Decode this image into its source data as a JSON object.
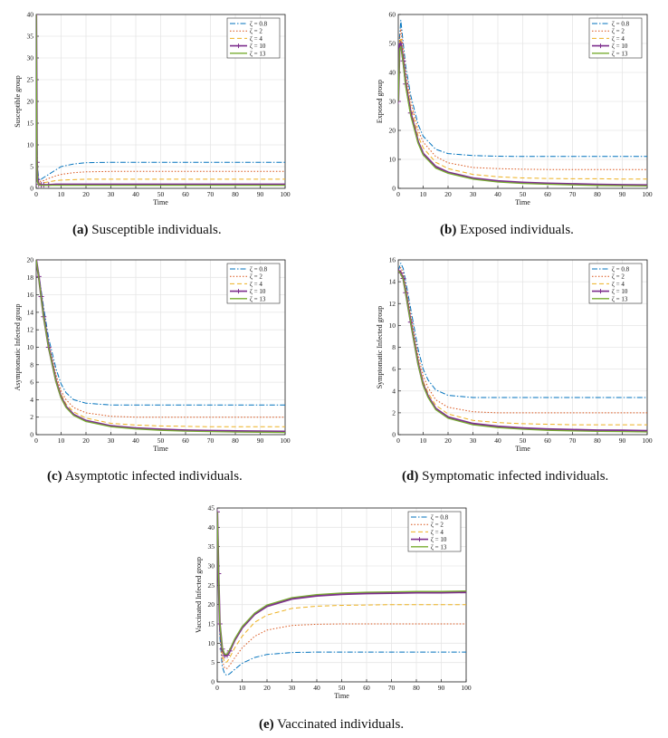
{
  "legend_labels": [
    "ζ = 0.8",
    "ζ = 2",
    "ζ = 4",
    "ζ = 10",
    "ζ = 13"
  ],
  "series_colors": [
    "#0072bd",
    "#d95319",
    "#edb120",
    "#7e2f8e",
    "#77ac30"
  ],
  "captions": [
    {
      "letter": "(a)",
      "text": "Susceptible individuals."
    },
    {
      "letter": "(b)",
      "text": "Exposed individuals."
    },
    {
      "letter": "(c)",
      "text": "Asymptotic infected individuals."
    },
    {
      "letter": "(d)",
      "text": "Symptomatic infected individuals."
    },
    {
      "letter": "(e)",
      "text": "Vaccinated individuals."
    }
  ],
  "chart_data": [
    {
      "type": "line",
      "title": "",
      "xlabel": "Time",
      "ylabel": "Susceptible group",
      "xlim": [
        0,
        100
      ],
      "ylim": [
        0,
        40
      ],
      "xticks": [
        0,
        10,
        20,
        30,
        40,
        50,
        60,
        70,
        80,
        90,
        100
      ],
      "yticks": [
        0,
        5,
        10,
        15,
        20,
        25,
        30,
        35,
        40
      ],
      "x": [
        0,
        0.3,
        0.5,
        1,
        2,
        3,
        5,
        8,
        10,
        15,
        20,
        30,
        40,
        50,
        60,
        70,
        80,
        90,
        100
      ],
      "series": [
        {
          "name": "ζ = 0.8",
          "values": [
            40,
            12,
            5,
            2.2,
            2.1,
            2.5,
            3.2,
            4.3,
            5,
            5.6,
            5.9,
            6.0,
            6.0,
            6.0,
            6.0,
            6.0,
            6.0,
            6.0,
            6.0
          ]
        },
        {
          "name": "ζ = 2",
          "values": [
            40,
            10,
            4,
            1.6,
            1.6,
            1.8,
            2.3,
            2.9,
            3.2,
            3.6,
            3.8,
            3.9,
            3.9,
            3.9,
            3.9,
            3.9,
            3.9,
            3.9,
            3.9
          ]
        },
        {
          "name": "ζ = 4",
          "values": [
            40,
            8,
            3,
            1.2,
            1.2,
            1.3,
            1.5,
            1.8,
            1.9,
            2.0,
            2.1,
            2.1,
            2.1,
            2.1,
            2.1,
            2.1,
            2.1,
            2.1,
            2.1
          ]
        },
        {
          "name": "ζ = 10",
          "values": [
            40,
            6,
            2,
            0.9,
            0.8,
            0.8,
            0.8,
            0.9,
            0.9,
            0.9,
            0.9,
            0.9,
            0.9,
            0.9,
            0.9,
            0.9,
            0.9,
            0.9,
            0.9
          ]
        },
        {
          "name": "ζ = 13",
          "values": [
            40,
            5,
            1.5,
            0.8,
            0.7,
            0.7,
            0.7,
            0.7,
            0.7,
            0.7,
            0.7,
            0.7,
            0.7,
            0.7,
            0.7,
            0.7,
            0.7,
            0.7,
            0.7
          ]
        }
      ]
    },
    {
      "type": "line",
      "title": "",
      "xlabel": "Time",
      "ylabel": "Exposed group",
      "xlim": [
        0,
        100
      ],
      "ylim": [
        0,
        60
      ],
      "xticks": [
        0,
        10,
        20,
        30,
        40,
        50,
        60,
        70,
        80,
        90,
        100
      ],
      "yticks": [
        0,
        10,
        20,
        30,
        40,
        50,
        60
      ],
      "x": [
        0,
        0.5,
        1,
        2,
        3,
        5,
        8,
        10,
        15,
        20,
        30,
        40,
        50,
        60,
        70,
        80,
        90,
        100
      ],
      "series": [
        {
          "name": "ζ = 0.8",
          "values": [
            30,
            52,
            58,
            50,
            42,
            32,
            22,
            18,
            13.5,
            12,
            11.3,
            11.1,
            11,
            11,
            11,
            11,
            11,
            11
          ]
        },
        {
          "name": "ζ = 2",
          "values": [
            30,
            51,
            55,
            48,
            40,
            30,
            20,
            16,
            11,
            8.8,
            7.2,
            6.8,
            6.6,
            6.5,
            6.5,
            6.5,
            6.5,
            6.5
          ]
        },
        {
          "name": "ζ = 4",
          "values": [
            30,
            50,
            52,
            46,
            38,
            28,
            18,
            14,
            9,
            6.8,
            4.8,
            4,
            3.6,
            3.4,
            3.3,
            3.3,
            3.2,
            3.2
          ]
        },
        {
          "name": "ζ = 10",
          "values": [
            30,
            49,
            50,
            44,
            36,
            26,
            16,
            12,
            7.5,
            5.5,
            3.5,
            2.5,
            2,
            1.7,
            1.5,
            1.3,
            1.2,
            1.1
          ]
        },
        {
          "name": "ζ = 13",
          "values": [
            30,
            48,
            49,
            43,
            35,
            25,
            15.5,
            11.5,
            7,
            5.2,
            3.2,
            2.2,
            1.7,
            1.4,
            1.2,
            1,
            0.9,
            0.8
          ]
        }
      ]
    },
    {
      "type": "line",
      "title": "",
      "xlabel": "Time",
      "ylabel": "Asymptomatic Infected group",
      "xlim": [
        0,
        100
      ],
      "ylim": [
        0,
        20
      ],
      "xticks": [
        0,
        10,
        20,
        30,
        40,
        50,
        60,
        70,
        80,
        90,
        100
      ],
      "yticks": [
        0,
        2,
        4,
        6,
        8,
        10,
        12,
        14,
        16,
        18,
        20
      ],
      "x": [
        0,
        1,
        2,
        3,
        5,
        8,
        10,
        12,
        15,
        20,
        30,
        40,
        50,
        60,
        70,
        80,
        90,
        100
      ],
      "series": [
        {
          "name": "ζ = 0.8",
          "values": [
            20,
            18.5,
            16.5,
            14.5,
            11,
            7.5,
            5.8,
            4.8,
            4,
            3.6,
            3.4,
            3.4,
            3.4,
            3.4,
            3.4,
            3.4,
            3.4,
            3.4
          ]
        },
        {
          "name": "ζ = 2",
          "values": [
            20,
            18.3,
            16.2,
            14,
            10.5,
            6.8,
            5,
            4,
            3.1,
            2.5,
            2.1,
            2,
            2,
            2,
            2,
            2,
            2,
            2
          ]
        },
        {
          "name": "ζ = 4",
          "values": [
            20,
            18.2,
            16,
            13.8,
            10.2,
            6.4,
            4.6,
            3.5,
            2.6,
            1.9,
            1.3,
            1.1,
            1,
            0.95,
            0.9,
            0.9,
            0.9,
            0.9
          ]
        },
        {
          "name": "ζ = 10",
          "values": [
            20,
            18.1,
            15.8,
            13.5,
            10,
            6.1,
            4.3,
            3.2,
            2.3,
            1.6,
            1,
            0.75,
            0.6,
            0.5,
            0.45,
            0.4,
            0.38,
            0.35
          ]
        },
        {
          "name": "ζ = 13",
          "values": [
            20,
            18,
            15.7,
            13.4,
            9.9,
            6,
            4.2,
            3.1,
            2.2,
            1.5,
            0.9,
            0.65,
            0.5,
            0.4,
            0.35,
            0.3,
            0.28,
            0.25
          ]
        }
      ]
    },
    {
      "type": "line",
      "title": "",
      "xlabel": "Time",
      "ylabel": "Symptomatic Infected group",
      "xlim": [
        0,
        100
      ],
      "ylim": [
        0,
        16
      ],
      "xticks": [
        0,
        10,
        20,
        30,
        40,
        50,
        60,
        70,
        80,
        90,
        100
      ],
      "yticks": [
        0,
        2,
        4,
        6,
        8,
        10,
        12,
        14,
        16
      ],
      "x": [
        0,
        1,
        2,
        3,
        5,
        8,
        10,
        12,
        15,
        20,
        30,
        40,
        50,
        60,
        70,
        80,
        90,
        100
      ],
      "series": [
        {
          "name": "ζ = 0.8",
          "values": [
            15,
            15.7,
            15.2,
            14,
            11.5,
            7.8,
            6,
            5,
            4.1,
            3.6,
            3.4,
            3.4,
            3.4,
            3.4,
            3.4,
            3.4,
            3.4,
            3.4
          ]
        },
        {
          "name": "ζ = 2",
          "values": [
            15,
            15.3,
            14.8,
            13.6,
            11,
            7.2,
            5.4,
            4.3,
            3.2,
            2.5,
            2.1,
            2,
            2,
            2,
            2,
            2,
            2,
            2
          ]
        },
        {
          "name": "ζ = 4",
          "values": [
            15,
            15,
            14.5,
            13.3,
            10.6,
            6.8,
            4.9,
            3.8,
            2.7,
            1.9,
            1.3,
            1.1,
            1,
            0.95,
            0.9,
            0.9,
            0.9,
            0.9
          ]
        },
        {
          "name": "ζ = 10",
          "values": [
            15,
            14.8,
            14.3,
            13,
            10.3,
            6.5,
            4.6,
            3.5,
            2.4,
            1.6,
            1,
            0.75,
            0.6,
            0.5,
            0.45,
            0.4,
            0.38,
            0.35
          ]
        },
        {
          "name": "ζ = 13",
          "values": [
            15,
            14.7,
            14.2,
            12.9,
            10.2,
            6.4,
            4.5,
            3.4,
            2.3,
            1.5,
            0.9,
            0.65,
            0.5,
            0.4,
            0.35,
            0.3,
            0.28,
            0.25
          ]
        }
      ]
    },
    {
      "type": "line",
      "title": "",
      "xlabel": "Time",
      "ylabel": "Vaccinated Infected group",
      "xlim": [
        0,
        100
      ],
      "ylim": [
        0,
        45
      ],
      "xticks": [
        0,
        10,
        20,
        30,
        40,
        50,
        60,
        70,
        80,
        90,
        100
      ],
      "yticks": [
        0,
        5,
        10,
        15,
        20,
        25,
        30,
        35,
        40,
        45
      ],
      "x": [
        0,
        0.5,
        1,
        2,
        3,
        4,
        5,
        7,
        10,
        15,
        20,
        30,
        40,
        50,
        60,
        70,
        80,
        90,
        100
      ],
      "series": [
        {
          "name": "ζ = 0.8",
          "values": [
            44,
            25,
            12,
            4,
            2,
            1.7,
            2.1,
            3.2,
            4.8,
            6.3,
            7.1,
            7.6,
            7.7,
            7.7,
            7.7,
            7.7,
            7.7,
            7.7,
            7.7
          ]
        },
        {
          "name": "ζ = 2",
          "values": [
            44,
            26,
            13,
            5.5,
            3.5,
            3.5,
            4.3,
            6.2,
            8.8,
            11.8,
            13.4,
            14.6,
            14.9,
            15,
            15,
            15,
            15,
            15,
            15
          ]
        },
        {
          "name": "ζ = 4",
          "values": [
            44,
            27,
            14,
            7,
            5,
            5.2,
            6.3,
            8.8,
            11.8,
            15.4,
            17.3,
            19,
            19.6,
            19.8,
            19.9,
            20,
            20,
            20,
            20
          ]
        },
        {
          "name": "ζ = 10",
          "values": [
            44,
            28,
            15,
            8.5,
            6.8,
            6.9,
            8,
            10.8,
            14,
            17.5,
            19.6,
            21.5,
            22.3,
            22.7,
            22.9,
            23,
            23.1,
            23.1,
            23.2
          ]
        },
        {
          "name": "ζ = 13",
          "values": [
            44,
            28.5,
            15.5,
            8.8,
            7.1,
            7.2,
            8.3,
            11.1,
            14.3,
            17.8,
            19.9,
            21.8,
            22.6,
            23,
            23.2,
            23.3,
            23.4,
            23.4,
            23.5
          ]
        }
      ]
    }
  ]
}
